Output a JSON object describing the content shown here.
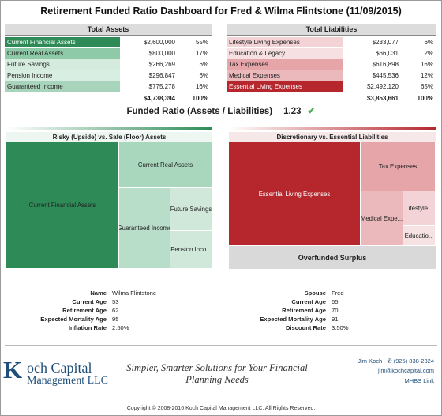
{
  "title": "Retirement Funded Ratio Dashboard for Fred & Wilma Flintstone (11/09/2015)",
  "assets": {
    "header": "Total Assets",
    "rows": [
      {
        "label": "Current Financial Assets",
        "value": "$2,600,000",
        "pct": "55%",
        "color": "#2e8b57",
        "text_color": "#ffffff"
      },
      {
        "label": "Current Real Assets",
        "value": "$800,000",
        "pct": "17%",
        "color": "#8fcaa8",
        "text_color": "#222222"
      },
      {
        "label": "Future Savings",
        "value": "$266,269",
        "pct": "6%",
        "color": "#d4ebde",
        "text_color": "#222222"
      },
      {
        "label": "Pension Income",
        "value": "$296,847",
        "pct": "6%",
        "color": "#d9eee2",
        "text_color": "#222222"
      },
      {
        "label": "Guaranteed Income",
        "value": "$775,278",
        "pct": "16%",
        "color": "#a8d4bb",
        "text_color": "#222222"
      }
    ],
    "total_value": "$4,738,394",
    "total_pct": "100%"
  },
  "liabilities": {
    "header": "Total Liabilities",
    "rows": [
      {
        "label": "Lifestyle Living Expenses",
        "value": "$233,077",
        "pct": "6%",
        "color": "#f3d3d5",
        "text_color": "#222222"
      },
      {
        "label": "Education & Legacy",
        "value": "$66,031",
        "pct": "2%",
        "color": "#f7e0e2",
        "text_color": "#222222"
      },
      {
        "label": "Tax Expenses",
        "value": "$616,898",
        "pct": "16%",
        "color": "#e5a5a9",
        "text_color": "#222222"
      },
      {
        "label": "Medical Expenses",
        "value": "$445,536",
        "pct": "12%",
        "color": "#ebb9bc",
        "text_color": "#222222"
      },
      {
        "label": "Essential Living Expenses",
        "value": "$2,492,120",
        "pct": "65%",
        "color": "#b5272d",
        "text_color": "#ffffff"
      }
    ],
    "total_value": "$3,853,661",
    "total_pct": "100%"
  },
  "funded_ratio": {
    "label": "Funded Ratio (Assets / Liabilities)",
    "value": "1.23",
    "status_icon": "checkmark-icon"
  },
  "risky_treemap": {
    "title": "Risky (Upside) vs. Safe (Floor) Assets",
    "cells": {
      "current_financial": {
        "label": "Current Financial Assets",
        "color": "#2e8b57"
      },
      "current_real": {
        "label": "Current Real Assets",
        "color": "#a9d7bd"
      },
      "guaranteed_income": {
        "label": "Guaranteed Income",
        "color": "#b8ddc8"
      },
      "future_savings": {
        "label": "Future Savings",
        "color": "#cfe8da"
      },
      "pension_income": {
        "label": "Pension Inco...",
        "color": "#cfe8da"
      }
    }
  },
  "discretionary_treemap": {
    "title": "Discretionary vs. Essential Liabilities",
    "cells": {
      "essential_living": {
        "label": "Essential Living Expenses",
        "color": "#b5272d"
      },
      "tax_expenses": {
        "label": "Tax Expenses",
        "color": "#e5a5a9"
      },
      "medical_expenses": {
        "label": "Medical Expe...",
        "color": "#ebb9bc"
      },
      "lifestyle": {
        "label": "Lifestyle...",
        "color": "#f3d3d5"
      },
      "education": {
        "label": "Educatio...",
        "color": "#f7e2e3"
      }
    },
    "surplus_label": "Overfunded Surplus"
  },
  "client_info": [
    {
      "key": "Name",
      "value": "Wilma Flintstone"
    },
    {
      "key": "Current Age",
      "value": "53"
    },
    {
      "key": "Retirement Age",
      "value": "62"
    },
    {
      "key": "Expected Mortality Age",
      "value": "95"
    },
    {
      "key": "Inflation Rate",
      "value": "2.50%"
    }
  ],
  "spouse_info": [
    {
      "key": "Spouse",
      "value": "Fred"
    },
    {
      "key": "Current Age",
      "value": "65"
    },
    {
      "key": "Retirement Age",
      "value": "70"
    },
    {
      "key": "Expected Mortality Age",
      "value": "91"
    },
    {
      "key": "Discount Rate",
      "value": "3.50%"
    }
  ],
  "footer": {
    "logo_letter": "K",
    "logo_line1": "och Capital",
    "logo_line2": "Management LLC",
    "tagline": "Simpler, Smarter Solutions for Your Financial Planning Needs",
    "contact_name": "Jim Koch",
    "contact_phone": "(925) 838-2324",
    "contact_email": "jim@kochcapital.com",
    "link": "MHBS Link",
    "copyright": "Copyright © 2008-2016 Koch Capital Management LLC. All Rights Reserved."
  }
}
